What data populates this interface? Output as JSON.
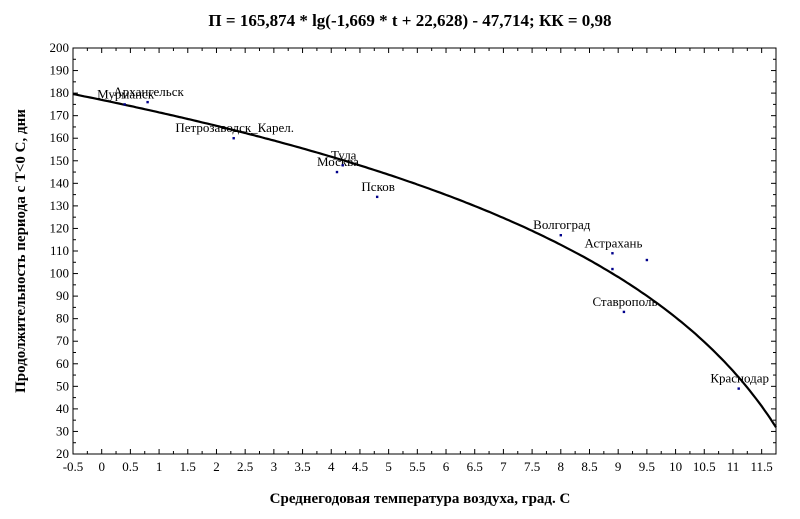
{
  "chart_data": {
    "type": "scatter",
    "title": "П = 165,874 * lg(-1,669 * t + 22,628) - 47,714;    КК = 0,98",
    "xlabel": "Среднегодовая температура воздуха, град. С",
    "ylabel": "Продолжительность периода с Т<0  С, дни",
    "xlim": [
      -0.5,
      11.75
    ],
    "ylim": [
      20,
      200
    ],
    "xticks": [
      "-0.5",
      "0",
      "0.5",
      "1",
      "1.5",
      "2",
      "2.5",
      "3",
      "3.5",
      "4",
      "4.5",
      "5",
      "5.5",
      "6",
      "6.5",
      "7",
      "7.5",
      "8",
      "8.5",
      "9",
      "9.5",
      "10",
      "10.5",
      "11",
      "11.5"
    ],
    "yticks": [
      "20",
      "30",
      "40",
      "50",
      "60",
      "70",
      "80",
      "90",
      "100",
      "110",
      "120",
      "130",
      "140",
      "150",
      "160",
      "170",
      "180",
      "190",
      "200"
    ],
    "grid": false,
    "fit_curve": {
      "a": 165.874,
      "b": -1.669,
      "c": 22.628,
      "d": -47.714,
      "x_range": [
        -0.5,
        11.75
      ]
    },
    "points": [
      {
        "label": "Мурманск",
        "x": 0.4,
        "y": 175
      },
      {
        "label": "Архангельск",
        "x": 0.8,
        "y": 176
      },
      {
        "label": "Петрозаводск_Карел.",
        "x": 2.3,
        "y": 160
      },
      {
        "label": "Москва",
        "x": 4.1,
        "y": 145
      },
      {
        "label": "Тула",
        "x": 4.2,
        "y": 148
      },
      {
        "label": "Псков",
        "x": 4.8,
        "y": 134
      },
      {
        "label": "Волгоград",
        "x": 8.0,
        "y": 117
      },
      {
        "label": "Астрахань",
        "x": 8.9,
        "y": 109
      },
      {
        "label": "",
        "x": 8.9,
        "y": 102
      },
      {
        "label": "",
        "x": 9.5,
        "y": 106
      },
      {
        "label": "Ставрополь",
        "x": 9.1,
        "y": 83
      },
      {
        "label": "Краснодар",
        "x": 11.1,
        "y": 49
      }
    ]
  }
}
